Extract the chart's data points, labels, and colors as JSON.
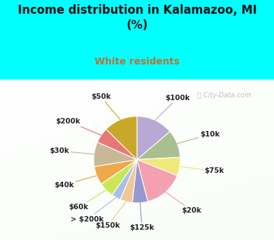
{
  "title": "Income distribution in Kalamazoo, MI\n(%)",
  "subtitle": "White residents",
  "title_color": "#111111",
  "subtitle_color": "#c07030",
  "bg_cyan": "#00ffff",
  "bg_chart_color1": "#f0fff0",
  "bg_chart_color2": "#c8eec8",
  "labels": [
    "$100k",
    "$10k",
    "$75k",
    "$20k",
    "$125k",
    "$150k",
    "> $200k",
    "$60k",
    "$40k",
    "$30k",
    "$200k",
    "$50k"
  ],
  "values": [
    12,
    9,
    6,
    13,
    5,
    4,
    3,
    5,
    6,
    8,
    5,
    11
  ],
  "colors": [
    "#b8a9d4",
    "#a8c090",
    "#f0e878",
    "#f4a0b0",
    "#9898d0",
    "#f0c898",
    "#a8c0e8",
    "#c8e858",
    "#f0a848",
    "#c8b898",
    "#e87878",
    "#c8a828"
  ],
  "label_fontsize": 7.5,
  "figsize": [
    4.0,
    3.5
  ],
  "dpi": 100
}
